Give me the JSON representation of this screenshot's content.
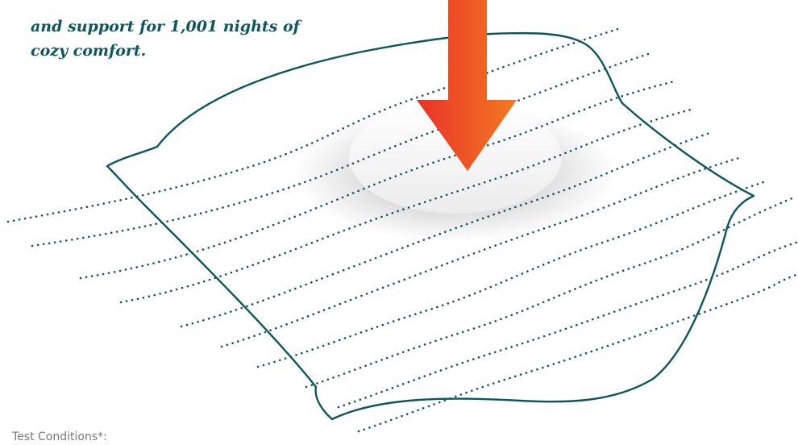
{
  "tagline": {
    "line_1": "and support for 1,001 nights of",
    "line_2": "cozy comfort."
  },
  "footnote": {
    "label": "Test Conditions*:"
  },
  "illustration": {
    "pillow_color": "#0d5560",
    "arrow_color_start": "#e8322a",
    "arrow_color_end": "#f47a20",
    "arrow_icon": "down-arrow-icon"
  }
}
